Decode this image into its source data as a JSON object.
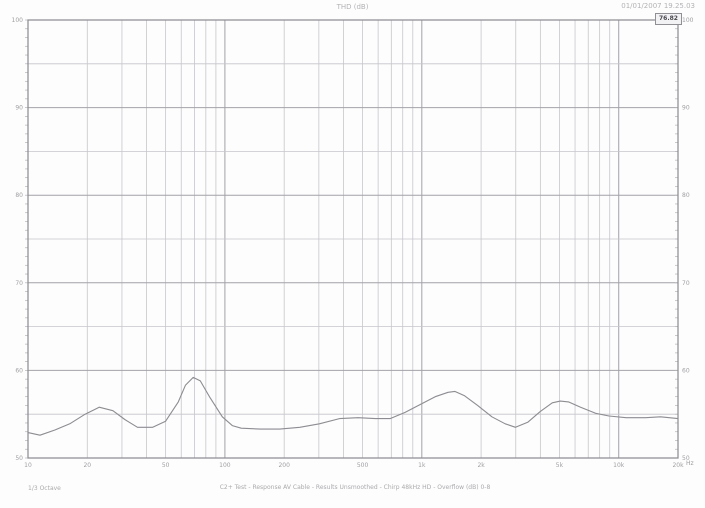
{
  "header": {
    "title": "THD (dB)",
    "datetime": "01/01/2007 19.25.03"
  },
  "legend_box": {
    "value": "76.82"
  },
  "footer": {
    "left_label": "1/3 Octave",
    "caption": "C2+ Test - Response AV Cable - Results Unsmoothed - Chirp 48kHz HD - Overflow (dB) 0-8"
  },
  "chart_data": {
    "type": "line",
    "title": "THD (dB)",
    "grid": true,
    "legend_position": "top-right",
    "x_axis": {
      "scale": "log",
      "min": 10,
      "max": 20000,
      "unit": "Hz",
      "labeled_ticks": [
        10,
        20,
        50,
        100,
        200,
        500,
        1000,
        2000,
        5000,
        10000,
        20000
      ],
      "tick_labels": [
        "10",
        "20",
        "50",
        "100",
        "200",
        "500",
        "1k",
        "2k",
        "5k",
        "10k",
        "20k"
      ],
      "decade_lines": [
        10,
        100,
        1000,
        10000
      ]
    },
    "y_axis": {
      "min": 50,
      "max": 100,
      "grid_step": 5,
      "label_step": 10,
      "minor_tick_step": 1,
      "labels_left": [
        "100",
        "90",
        "80",
        "70",
        "60",
        "50"
      ],
      "labels_right": [
        "100",
        "90",
        "80",
        "70",
        "60",
        "50"
      ]
    },
    "colors": {
      "frame": "#8a8a90",
      "grid_major": "#a2a2a8",
      "grid_minor": "#c6c6cc",
      "curve": "#8c8c92",
      "tick": "#b4b4b8",
      "label_text": "#a0a0a4"
    },
    "series": [
      {
        "name": "response",
        "color": "#8c8c92",
        "points": [
          [
            10,
            52.9
          ],
          [
            11.5,
            52.6
          ],
          [
            13.7,
            53.2
          ],
          [
            16.3,
            53.9
          ],
          [
            19.5,
            55.0
          ],
          [
            23,
            55.8
          ],
          [
            27,
            55.4
          ],
          [
            31,
            54.4
          ],
          [
            36,
            53.5
          ],
          [
            43,
            53.5
          ],
          [
            50,
            54.2
          ],
          [
            58,
            56.4
          ],
          [
            63,
            58.3
          ],
          [
            69,
            59.2
          ],
          [
            75,
            58.8
          ],
          [
            84,
            56.9
          ],
          [
            97,
            54.7
          ],
          [
            109,
            53.7
          ],
          [
            121,
            53.4
          ],
          [
            151,
            53.3
          ],
          [
            190,
            53.3
          ],
          [
            240,
            53.5
          ],
          [
            302,
            53.9
          ],
          [
            382,
            54.5
          ],
          [
            475,
            54.6
          ],
          [
            580,
            54.5
          ],
          [
            690,
            54.5
          ],
          [
            822,
            55.2
          ],
          [
            979,
            56.1
          ],
          [
            1170,
            57.0
          ],
          [
            1360,
            57.5
          ],
          [
            1470,
            57.6
          ],
          [
            1650,
            57.1
          ],
          [
            1920,
            56.0
          ],
          [
            2270,
            54.7
          ],
          [
            2650,
            53.9
          ],
          [
            2990,
            53.5
          ],
          [
            3460,
            54.1
          ],
          [
            3990,
            55.3
          ],
          [
            4600,
            56.3
          ],
          [
            5050,
            56.5
          ],
          [
            5560,
            56.4
          ],
          [
            6400,
            55.8
          ],
          [
            7630,
            55.1
          ],
          [
            8930,
            54.8
          ],
          [
            10900,
            54.6
          ],
          [
            13700,
            54.6
          ],
          [
            16300,
            54.7
          ],
          [
            20000,
            54.5
          ]
        ]
      }
    ]
  }
}
